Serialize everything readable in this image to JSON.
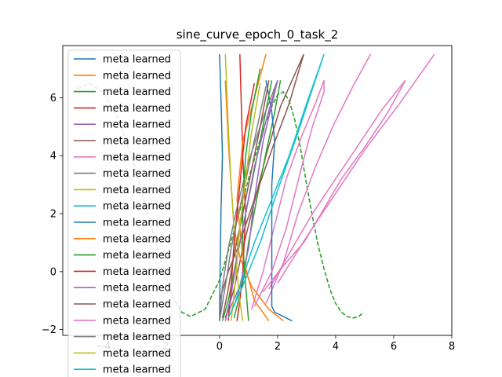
{
  "chart_data": {
    "type": "line",
    "title": "sine_curve_epoch_0_task_2",
    "xlabel": "",
    "ylabel": "",
    "xlim": [
      -5.4,
      8.0
    ],
    "ylim": [
      -2.2,
      7.8
    ],
    "x_ticks": [
      -4,
      -2,
      0,
      2,
      4,
      6,
      8
    ],
    "y_ticks": [
      -2,
      0,
      2,
      4,
      6
    ],
    "grid": false,
    "legend_position": "upper-left",
    "palette": [
      "#1f77b4",
      "#ff7f0e",
      "#2ca02c",
      "#d62728",
      "#9467bd",
      "#8c564b",
      "#e377c2",
      "#7f7f7f",
      "#bcbd22",
      "#17becf"
    ],
    "reference_curve": {
      "style": "dashed",
      "color": "#2ca02c",
      "x": [
        -4.9,
        -4.5,
        -4.0,
        -3.5,
        -3.0,
        -2.5,
        -2.0,
        -1.6,
        -1.3,
        -1.0,
        -0.5,
        0.0,
        0.5,
        1.0,
        1.5,
        1.8,
        2.0,
        2.2,
        2.4,
        2.6,
        2.8,
        3.0,
        3.2,
        3.4,
        3.6,
        3.8,
        4.0,
        4.2,
        4.4,
        4.6,
        4.8,
        4.95
      ],
      "y": [
        6.3,
        6.5,
        6.2,
        5.3,
        3.9,
        2.1,
        0.3,
        -0.9,
        -1.4,
        -1.55,
        -1.3,
        -0.3,
        1.4,
        3.2,
        4.9,
        5.7,
        6.1,
        6.2,
        5.9,
        5.2,
        4.2,
        3.0,
        1.9,
        0.9,
        0.1,
        -0.6,
        -1.1,
        -1.4,
        -1.55,
        -1.6,
        -1.55,
        -1.4
      ]
    },
    "series": [
      {
        "name": "meta learned",
        "x": [
          2.5,
          1.9,
          1.8,
          1.8,
          1.8,
          1.8,
          1.9,
          1.8,
          1.6
        ],
        "y": [
          -1.7,
          -1.4,
          -1.2,
          0.0,
          1.5,
          3.0,
          4.5,
          5.5,
          6.6
        ]
      },
      {
        "name": "meta learned",
        "x": [
          2.2,
          1.7,
          1.1,
          0.7,
          0.5,
          0.4,
          0.3,
          0.2
        ],
        "y": [
          -1.7,
          -1.3,
          -0.5,
          0.5,
          1.5,
          3.0,
          4.5,
          6.6
        ]
      },
      {
        "name": "meta learned",
        "x": [
          0.1,
          0.3,
          0.5,
          0.7,
          1.0,
          1.3,
          1.8
        ],
        "y": [
          -1.7,
          -1.0,
          0.0,
          1.0,
          2.5,
          4.0,
          6.6
        ]
      },
      {
        "name": "meta learned",
        "x": [
          0.6,
          0.7,
          0.8,
          0.9,
          0.8,
          0.7
        ],
        "y": [
          -1.7,
          -1.0,
          0.0,
          2.0,
          4.0,
          7.5
        ]
      },
      {
        "name": "meta learned",
        "x": [
          0.3,
          0.7,
          1.0,
          1.2,
          1.5,
          2.0
        ],
        "y": [
          -1.4,
          -0.5,
          0.8,
          2.5,
          4.5,
          6.6
        ]
      },
      {
        "name": "meta learned",
        "x": [
          0.0,
          0.3,
          0.7,
          1.2,
          1.8,
          2.4,
          2.9
        ],
        "y": [
          -1.0,
          0.0,
          1.0,
          2.5,
          4.2,
          5.8,
          7.5
        ]
      },
      {
        "name": "meta learned",
        "x": [
          1.5,
          2.2,
          2.9,
          3.5,
          4.2,
          5.0,
          5.8,
          6.4
        ],
        "y": [
          -0.7,
          0.2,
          1.0,
          2.0,
          3.2,
          4.3,
          5.5,
          6.6
        ]
      },
      {
        "name": "meta learned",
        "x": [
          0.0,
          0.1,
          0.3,
          0.6,
          1.0,
          1.5,
          2.0
        ],
        "y": [
          -1.7,
          -0.5,
          0.8,
          2.2,
          3.8,
          5.3,
          6.6
        ]
      },
      {
        "name": "meta learned",
        "x": [
          0.8,
          0.7,
          0.6,
          0.5,
          0.4,
          0.3,
          0.2
        ],
        "y": [
          -1.7,
          -1.0,
          0.0,
          1.5,
          3.0,
          5.0,
          7.5
        ]
      },
      {
        "name": "meta learned",
        "x": [
          0.5,
          0.8,
          1.2,
          1.8,
          2.4,
          3.0,
          3.6
        ],
        "y": [
          -1.2,
          -0.2,
          1.0,
          2.5,
          4.0,
          5.8,
          7.5
        ]
      },
      {
        "name": "meta learned",
        "x": [
          0.0,
          0.02,
          0.05,
          0.1,
          0.05,
          0.0
        ],
        "y": [
          -1.7,
          0.0,
          2.0,
          4.0,
          6.0,
          7.5
        ]
      },
      {
        "name": "meta learned",
        "x": [
          1.7,
          1.2,
          0.8,
          0.6,
          0.8,
          1.2,
          1.6
        ],
        "y": [
          -1.7,
          -1.0,
          0.5,
          2.5,
          4.5,
          6.0,
          7.5
        ]
      },
      {
        "name": "meta learned",
        "x": [
          1.0,
          0.9,
          0.8,
          0.8,
          0.9,
          1.1,
          1.4
        ],
        "y": [
          -1.7,
          -0.5,
          1.0,
          2.5,
          4.0,
          5.5,
          7.0
        ]
      },
      {
        "name": "meta learned",
        "x": [
          0.3,
          0.4,
          0.5,
          0.7,
          0.9,
          1.2
        ],
        "y": [
          -1.7,
          -0.5,
          1.0,
          3.0,
          5.0,
          6.5
        ]
      },
      {
        "name": "meta learned",
        "x": [
          0.2,
          0.4,
          0.6,
          0.9,
          1.2,
          1.6,
          2.0
        ],
        "y": [
          -1.7,
          -0.8,
          0.5,
          2.0,
          3.6,
          5.2,
          6.6
        ]
      },
      {
        "name": "meta learned",
        "x": [
          0.1,
          0.3,
          0.5,
          0.8,
          1.1,
          1.4,
          1.7
        ],
        "y": [
          -1.6,
          -0.6,
          0.6,
          2.0,
          3.5,
          5.0,
          6.6
        ]
      },
      {
        "name": "meta learned",
        "x": [
          1.2,
          1.8,
          2.3,
          2.8,
          3.2,
          3.6,
          3.6
        ],
        "y": [
          -1.2,
          0.0,
          1.5,
          3.5,
          5.0,
          6.2,
          6.6
        ]
      },
      {
        "name": "meta learned",
        "x": [
          0.0,
          0.2,
          0.4,
          0.7,
          1.0,
          1.3,
          1.6
        ],
        "y": [
          -1.7,
          -0.5,
          0.8,
          2.2,
          3.6,
          5.0,
          6.4
        ]
      },
      {
        "name": "meta learned",
        "x": [
          0.4,
          0.5,
          0.6,
          0.7,
          0.9,
          1.1,
          1.4
        ],
        "y": [
          -1.7,
          -0.8,
          0.3,
          1.6,
          3.2,
          4.8,
          6.5
        ]
      },
      {
        "name": "meta learned",
        "x": [
          0.3,
          0.8,
          1.4,
          2.0,
          2.6,
          3.1,
          3.6
        ],
        "y": [
          -1.6,
          -0.5,
          1.0,
          2.8,
          4.5,
          6.0,
          7.5
        ]
      }
    ],
    "extra_lines": [
      {
        "color": "#e377c2",
        "x": [
          2.0,
          3.0,
          4.0,
          5.0,
          6.2,
          7.4
        ],
        "y": [
          -0.4,
          1.2,
          2.7,
          4.2,
          5.8,
          7.5
        ]
      },
      {
        "color": "#e377c2",
        "x": [
          1.6,
          2.2,
          2.7,
          3.3,
          3.9,
          4.6,
          5.2
        ],
        "y": [
          -1.1,
          0.3,
          2.0,
          3.6,
          5.0,
          6.4,
          7.5
        ]
      },
      {
        "color": "#e377c2",
        "x": [
          1.7,
          2.5,
          3.2,
          4.0,
          4.8,
          5.6,
          6.4
        ],
        "y": [
          -0.6,
          0.8,
          2.0,
          3.2,
          4.4,
          5.6,
          6.6
        ]
      },
      {
        "color": "#e377c2",
        "x": [
          1.1,
          1.5,
          1.9,
          2.3,
          2.8,
          3.3,
          3.6
        ],
        "y": [
          -1.3,
          0.0,
          1.6,
          3.2,
          4.6,
          5.8,
          6.6
        ]
      },
      {
        "color": "#8c564b",
        "x": [
          0.2,
          0.5,
          0.8,
          1.2,
          1.6,
          2.1,
          2.9
        ],
        "y": [
          -1.6,
          -0.6,
          0.8,
          2.4,
          4.0,
          5.7,
          7.5
        ]
      },
      {
        "color": "#2ca02c",
        "x": [
          0.5,
          0.8,
          1.0,
          1.3,
          1.6,
          1.9,
          2.1
        ],
        "y": [
          -1.6,
          -0.4,
          1.0,
          2.6,
          4.1,
          5.5,
          6.6
        ]
      }
    ]
  }
}
